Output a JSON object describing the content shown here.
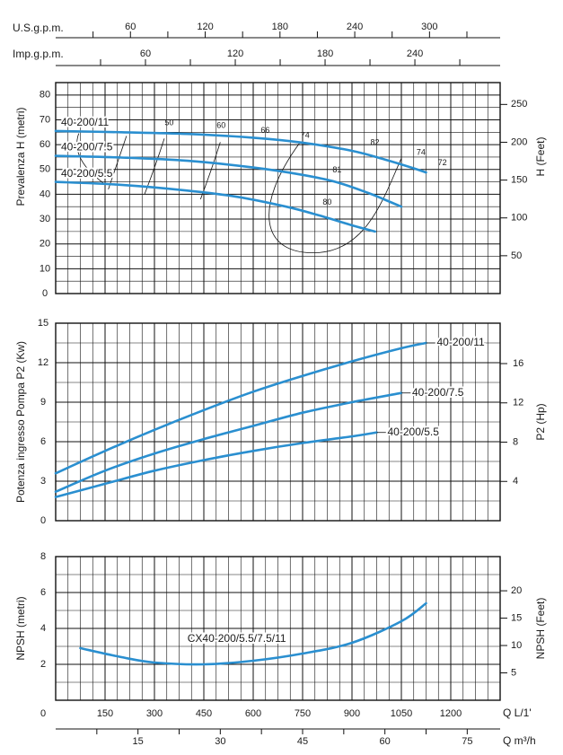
{
  "colors": {
    "curve": "#2a8fd0",
    "grid": "#111111",
    "text": "#1a1a1a",
    "minor": "#555555"
  },
  "flow_scales": {
    "usgpm": {
      "label": "U.S.g.p.m.",
      "ticks": [
        "60",
        "120",
        "180",
        "240",
        "300"
      ],
      "values": [
        60,
        120,
        180,
        240,
        300
      ]
    },
    "impgpm": {
      "label": "Imp.g.p.m.",
      "ticks": [
        "60",
        "120",
        "180",
        "240"
      ],
      "values": [
        60,
        120,
        180,
        240
      ]
    },
    "lmin": {
      "label": "Q L/1'",
      "ticks": [
        "0",
        "150",
        "300",
        "450",
        "600",
        "750",
        "900",
        "1050",
        "1200"
      ],
      "values": [
        0,
        150,
        300,
        450,
        600,
        750,
        900,
        1050,
        1200
      ]
    },
    "m3h": {
      "label": "Q m³/h",
      "ticks": [
        "15",
        "30",
        "45",
        "60",
        "75"
      ],
      "values": [
        15,
        30,
        45,
        60,
        75
      ]
    }
  },
  "chart_data": [
    {
      "id": "head",
      "type": "line",
      "ylabel": "Prevalenza H (metri)",
      "ylabel_right": "H (Feet)",
      "ylim": [
        0,
        85
      ],
      "xlim": [
        0,
        1350
      ],
      "y_ticks": [
        "0",
        "10",
        "20",
        "30",
        "40",
        "50",
        "60",
        "70",
        "80"
      ],
      "y_right_ticks": [
        "50",
        "100",
        "150",
        "200",
        "250"
      ],
      "grid": true,
      "series": [
        {
          "name": "40-200/11",
          "x": [
            0,
            200,
            400,
            600,
            750,
            900,
            1000,
            1080,
            1125
          ],
          "y": [
            65.5,
            65,
            64.3,
            62.8,
            60.8,
            57.5,
            54,
            50.8,
            48.8
          ]
        },
        {
          "name": "40-200/7.5",
          "x": [
            0,
            200,
            400,
            600,
            750,
            850,
            950,
            1000,
            1050
          ],
          "y": [
            55.5,
            54.8,
            53.5,
            50.8,
            47.8,
            45,
            40.5,
            37.8,
            35
          ]
        },
        {
          "name": "40-200/5.5",
          "x": [
            0,
            200,
            400,
            550,
            700,
            800,
            900,
            970
          ],
          "y": [
            45,
            43.8,
            41.5,
            39,
            35,
            31.5,
            27.5,
            25
          ]
        }
      ],
      "efficiency_labels": [
        "50",
        "60",
        "66",
        "74",
        "82",
        "81",
        "80",
        "74",
        "72"
      ]
    },
    {
      "id": "power",
      "type": "line",
      "ylabel": "Potenza ingresso Pompa P2 (Kw)",
      "ylabel_right": "P2 (Hp)",
      "ylim": [
        0,
        15
      ],
      "xlim": [
        0,
        1350
      ],
      "y_ticks": [
        "0",
        "3",
        "6",
        "9",
        "12",
        "15"
      ],
      "y_right_ticks": [
        "4",
        "8",
        "12",
        "16"
      ],
      "grid": true,
      "series": [
        {
          "name": "40-200/11",
          "x": [
            0,
            150,
            300,
            450,
            600,
            750,
            900,
            1050,
            1125
          ],
          "y": [
            3.6,
            5.3,
            6.9,
            8.4,
            9.8,
            11,
            12.1,
            13.1,
            13.5
          ]
        },
        {
          "name": "40-200/7.5",
          "x": [
            0,
            150,
            300,
            450,
            600,
            750,
            900,
            1050
          ],
          "y": [
            2.2,
            3.8,
            5.1,
            6.2,
            7.2,
            8.2,
            9,
            9.7
          ]
        },
        {
          "name": "40-200/5.5",
          "x": [
            0,
            150,
            300,
            450,
            600,
            750,
            900,
            975
          ],
          "y": [
            1.8,
            2.8,
            3.8,
            4.6,
            5.3,
            5.9,
            6.4,
            6.7
          ]
        }
      ]
    },
    {
      "id": "npsh",
      "type": "line",
      "ylabel": "NPSH (metri)",
      "ylabel_right": "NPSH (Feet)",
      "ylim": [
        0,
        8
      ],
      "xlim": [
        0,
        1350
      ],
      "y_ticks": [
        "2",
        "4",
        "6",
        "8"
      ],
      "y_right_ticks": [
        "5",
        "10",
        "15",
        "20"
      ],
      "grid": true,
      "series": [
        {
          "name": "CX40-200/5.5/7.5/11",
          "x": [
            75,
            200,
            300,
            450,
            600,
            750,
            900,
            1050,
            1125
          ],
          "y": [
            2.9,
            2.4,
            2.1,
            2.0,
            2.2,
            2.6,
            3.2,
            4.4,
            5.4
          ]
        }
      ]
    }
  ]
}
